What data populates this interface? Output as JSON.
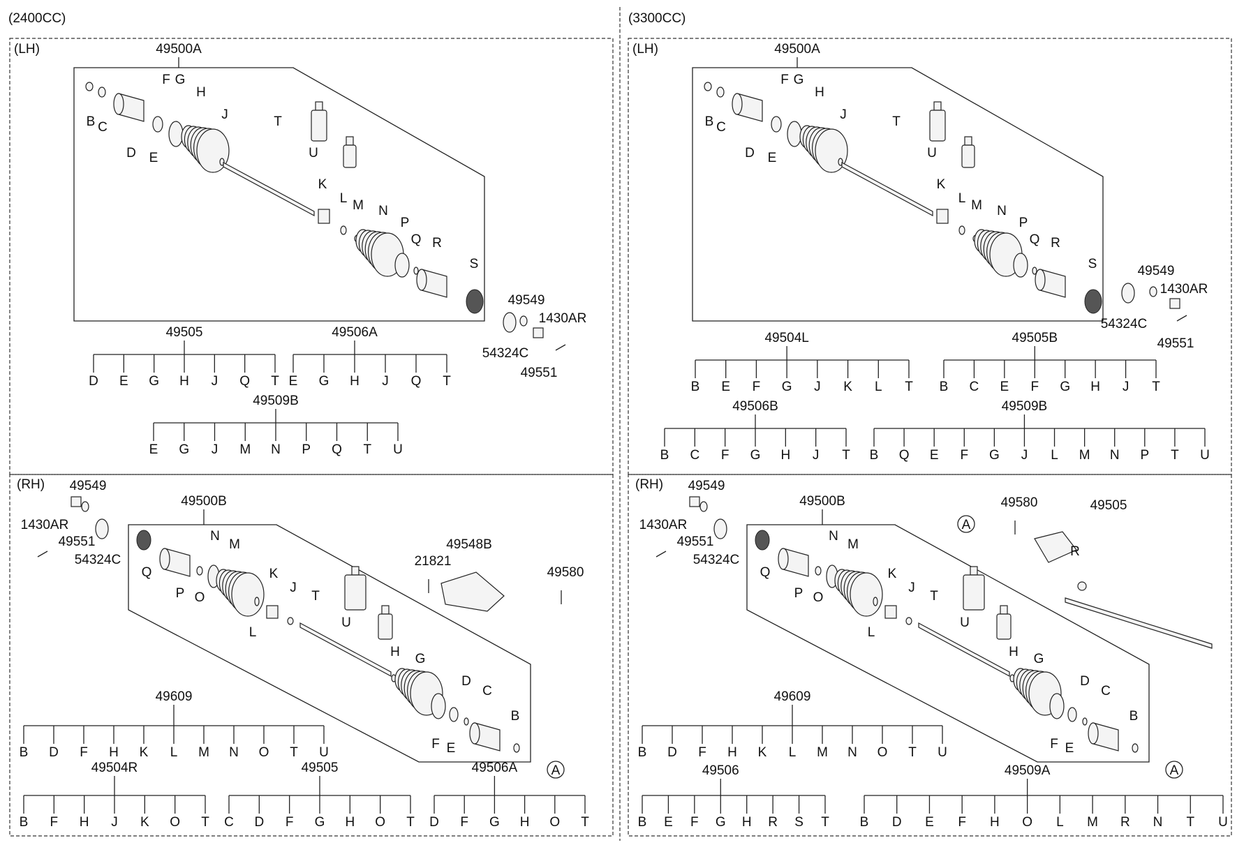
{
  "sections": {
    "engine_2400": "(2400CC)",
    "engine_3300": "(3300CC)"
  },
  "panels": [
    {
      "side": "(LH)",
      "assembly": "49500A",
      "callouts": {
        "B": "B",
        "C": "C",
        "D": "D",
        "E": "E",
        "F": "F",
        "G": "G",
        "H": "H",
        "J": "J",
        "K": "K",
        "L": "L",
        "M": "M",
        "N": "N",
        "P": "P",
        "Q": "Q",
        "R": "R",
        "S": "S",
        "T": "T",
        "U": "U"
      },
      "extras": {
        "nut": "49551",
        "washer": "49549",
        "pin": "1430AR",
        "seal": "54324C"
      },
      "trees": [
        {
          "label": "49505",
          "items": [
            "D",
            "E",
            "G",
            "H",
            "J",
            "Q",
            "T"
          ]
        },
        {
          "label": "49506A",
          "items": [
            "E",
            "G",
            "H",
            "J",
            "Q",
            "T"
          ]
        },
        {
          "label": "49509B",
          "items": [
            "E",
            "G",
            "J",
            "M",
            "N",
            "P",
            "Q",
            "T",
            "U"
          ]
        }
      ]
    },
    {
      "side": "(LH)",
      "assembly": "49500A",
      "callouts": {
        "B": "B",
        "C": "C",
        "D": "D",
        "E": "E",
        "F": "F",
        "G": "G",
        "H": "H",
        "J": "J",
        "K": "K",
        "L": "L",
        "M": "M",
        "N": "N",
        "P": "P",
        "Q": "Q",
        "R": "R",
        "S": "S",
        "T": "T",
        "U": "U"
      },
      "extras": {
        "nut": "49551",
        "washer": "49549",
        "pin": "1430AR",
        "seal": "54324C"
      },
      "trees": [
        {
          "label": "49504L",
          "items": [
            "B",
            "E",
            "F",
            "G",
            "J",
            "K",
            "L",
            "T"
          ]
        },
        {
          "label": "49505B",
          "items": [
            "B",
            "C",
            "E",
            "F",
            "G",
            "H",
            "J",
            "T"
          ]
        },
        {
          "label": "49506B",
          "items": [
            "B",
            "C",
            "F",
            "G",
            "H",
            "J",
            "T"
          ]
        },
        {
          "label": "49509B",
          "items": [
            "B",
            "Q",
            "E",
            "F",
            "G",
            "J",
            "L",
            "M",
            "N",
            "P",
            "T",
            "U"
          ]
        }
      ]
    },
    {
      "side": "(RH)",
      "assembly": "49500B",
      "callouts": {
        "B": "B",
        "C": "C",
        "D": "D",
        "E": "E",
        "F": "F",
        "G": "G",
        "H": "H",
        "J": "J",
        "K": "K",
        "L": "L",
        "M": "M",
        "N": "N",
        "O": "O",
        "P": "P",
        "Q": "Q",
        "T": "T",
        "U": "U"
      },
      "extras": {
        "nut": "49551",
        "washer": "49549",
        "pin": "1430AR",
        "seal": "54324C",
        "bracket": "49548B",
        "bolt": "21821",
        "bolt2": "49580",
        "ref": "A"
      },
      "trees": [
        {
          "label": "49609",
          "items": [
            "B",
            "D",
            "F",
            "H",
            "K",
            "L",
            "M",
            "N",
            "O",
            "T",
            "U"
          ]
        },
        {
          "label": "49504R",
          "items": [
            "B",
            "F",
            "H",
            "J",
            "K",
            "O",
            "T"
          ]
        },
        {
          "label": "49505",
          "items": [
            "C",
            "D",
            "F",
            "G",
            "H",
            "O",
            "T"
          ]
        },
        {
          "label": "49506A",
          "items": [
            "D",
            "F",
            "G",
            "H",
            "O",
            "T"
          ]
        }
      ]
    },
    {
      "side": "(RH)",
      "assembly": "49500B",
      "callouts": {
        "B": "B",
        "C": "C",
        "D": "D",
        "E": "E",
        "F": "F",
        "G": "G",
        "H": "H",
        "J": "J",
        "K": "K",
        "L": "L",
        "M": "M",
        "N": "N",
        "O": "O",
        "P": "P",
        "Q": "Q",
        "T": "T",
        "U": "U"
      },
      "extras": {
        "nut": "49551",
        "washer": "49549",
        "pin": "1430AR",
        "seal": "54324C",
        "bolt2": "49580",
        "shaft": "49505",
        "R": "R",
        "ref": "A",
        "ref2": "A"
      },
      "trees": [
        {
          "label": "49609",
          "items": [
            "B",
            "D",
            "F",
            "H",
            "K",
            "L",
            "M",
            "N",
            "O",
            "T",
            "U"
          ]
        },
        {
          "label": "49506",
          "items": [
            "B",
            "E",
            "F",
            "G",
            "H",
            "R",
            "S",
            "T"
          ]
        },
        {
          "label": "49509A",
          "items": [
            "B",
            "D",
            "E",
            "F",
            "H",
            "O",
            "L",
            "M",
            "R",
            "N",
            "T",
            "U"
          ]
        }
      ]
    }
  ]
}
